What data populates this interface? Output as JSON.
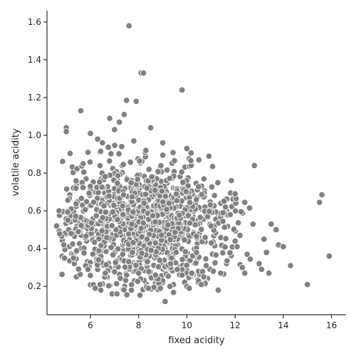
{
  "chart_data": {
    "type": "scatter",
    "xlabel": "fixed acidity",
    "ylabel": "volatile acidity",
    "xlim": [
      4.2,
      16.6
    ],
    "ylim": [
      0.05,
      1.66
    ],
    "x_ticks": [
      6,
      8,
      10,
      12,
      14,
      16
    ],
    "y_ticks": [
      0.2,
      0.4,
      0.6,
      0.8,
      1.0,
      1.2,
      1.4,
      1.6
    ],
    "x_tick_labels": [
      "6",
      "8",
      "10",
      "12",
      "14",
      "16"
    ],
    "y_tick_labels": [
      "0.2",
      "0.4",
      "0.6",
      "0.8",
      "1.0",
      "1.2",
      "1.4",
      "1.6"
    ],
    "grid": false,
    "point_color": "#808080",
    "series": [
      {
        "x": [
          7.6,
          8.1,
          8.2,
          9.8,
          7.5,
          7.9,
          7.4,
          8.5,
          6.8,
          7.2,
          7.0,
          5.0,
          5.0,
          5.6,
          6.0,
          6.3,
          6.5,
          7.3,
          7.8,
          8.3,
          9.0,
          10.0,
          10.5,
          12.8,
          15.0,
          15.5,
          15.6,
          15.9,
          14.3,
          13.8,
          13.5,
          13.3,
          13.0,
          12.5,
          12.0,
          11.5,
          11.0,
          10.8,
          10.4,
          10.2,
          11.8,
          12.2,
          12.6,
          4.6,
          4.7,
          4.9,
          5.1,
          5.2,
          5.3,
          5.4,
          5.5,
          5.7,
          5.8,
          5.9,
          9.1,
          8.9,
          10.0,
          10.2,
          10.6,
          11.3,
          11.6,
          12.0,
          13.2,
          13.7,
          14.0,
          6.9,
          7.1,
          8.8,
          9.6,
          10.1,
          6.2,
          5.9,
          6.4,
          7.7,
          8.4,
          9.3,
          9.8,
          10.7,
          11.1,
          11.4,
          12.4,
          12.3,
          13.1,
          13.4,
          8.7,
          8.0,
          7.5
        ],
        "y": [
          1.58,
          1.33,
          1.33,
          1.24,
          1.185,
          1.18,
          1.11,
          1.04,
          1.09,
          1.07,
          1.03,
          1.04,
          1.02,
          1.13,
          1.01,
          0.98,
          0.96,
          0.94,
          0.97,
          0.92,
          0.96,
          0.93,
          0.87,
          0.84,
          0.21,
          0.645,
          0.685,
          0.36,
          0.31,
          0.42,
          0.53,
          0.38,
          0.32,
          0.37,
          0.44,
          0.59,
          0.52,
          0.31,
          0.38,
          0.265,
          0.58,
          0.47,
          0.615,
          0.52,
          0.6,
          0.42,
          0.5,
          0.48,
          0.35,
          0.72,
          0.49,
          0.85,
          0.31,
          0.91,
          0.12,
          0.19,
          0.2,
          0.27,
          0.21,
          0.18,
          0.62,
          0.69,
          0.45,
          0.5,
          0.41,
          0.16,
          0.16,
          0.24,
          0.29,
          0.19,
          0.19,
          0.29,
          0.21,
          0.18,
          0.19,
          0.2,
          0.26,
          0.25,
          0.28,
          0.27,
          0.27,
          0.3,
          0.29,
          0.27,
          0.26,
          0.27,
          0.26
        ]
      }
    ]
  }
}
